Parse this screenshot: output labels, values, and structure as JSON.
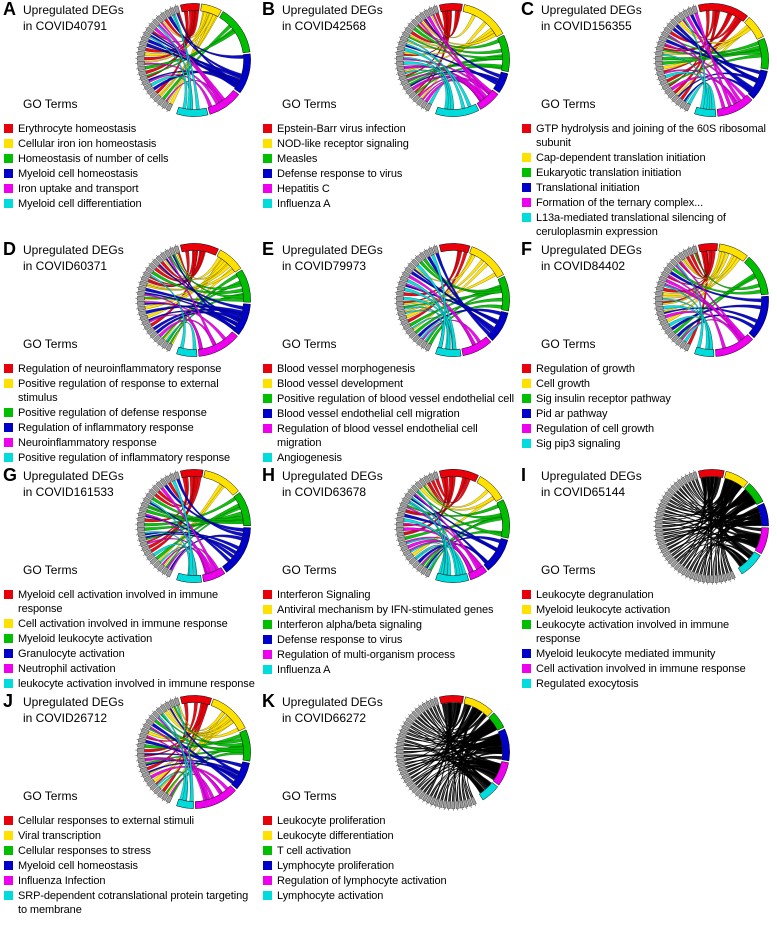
{
  "figure": {
    "background": "#ffffff",
    "palette": {
      "red": "#e8000b",
      "yellow": "#ffe100",
      "green": "#00bf00",
      "blue": "#0000c8",
      "magenta": "#ee00ee",
      "cyan": "#00dcdc"
    },
    "panels": [
      {
        "letter": "A",
        "title_top": "Upregulated DEGs",
        "title_bottom": "in COVID40791",
        "go_terms_label": "GO Terms",
        "chord_style": "colorful",
        "terms": [
          {
            "label": "Erythrocyte homeostasis",
            "color": "#e8000b"
          },
          {
            "label": "Cellular iron ion homeostasis",
            "color": "#ffe100"
          },
          {
            "label": "Homeostasis of number of cells",
            "color": "#00bf00"
          },
          {
            "label": "Myeloid cell homeostasis",
            "color": "#0000c8"
          },
          {
            "label": "Iron uptake and transport",
            "color": "#ee00ee"
          },
          {
            "label": "Myeloid cell differentiation",
            "color": "#00dcdc"
          }
        ]
      },
      {
        "letter": "B",
        "title_top": "Upregulated DEGs",
        "title_bottom": "in COVID42568",
        "go_terms_label": "GO Terms",
        "chord_style": "colorful",
        "terms": [
          {
            "label": "Epstein-Barr virus infection",
            "color": "#e8000b"
          },
          {
            "label": "NOD-like receptor signaling",
            "color": "#ffe100"
          },
          {
            "label": "Measles",
            "color": "#00bf00"
          },
          {
            "label": "Defense response to virus",
            "color": "#0000c8"
          },
          {
            "label": "Hepatitis C",
            "color": "#ee00ee"
          },
          {
            "label": "Influenza A",
            "color": "#00dcdc"
          }
        ]
      },
      {
        "letter": "C",
        "title_top": "Upregulated DEGs",
        "title_bottom": "in COVID156355",
        "go_terms_label": "GO Terms",
        "chord_style": "colorful",
        "terms": [
          {
            "label": "GTP hydrolysis and joining of the 60S ribosomal subunit",
            "color": "#e8000b"
          },
          {
            "label": "Cap-dependent translation initiation",
            "color": "#ffe100"
          },
          {
            "label": "Eukaryotic translation initiation",
            "color": "#00bf00"
          },
          {
            "label": "Translational initiation",
            "color": "#0000c8"
          },
          {
            "label": "Formation of the ternary complex...",
            "color": "#ee00ee"
          },
          {
            "label": "L13a-mediated translational silencing of ceruloplasmin expression",
            "color": "#00dcdc"
          }
        ]
      },
      {
        "letter": "D",
        "title_top": "Upregulated DEGs",
        "title_bottom": "in COVID60371",
        "go_terms_label": "GO Terms",
        "chord_style": "colorful",
        "terms": [
          {
            "label": "Regulation of neuroinflammatory response",
            "color": "#e8000b"
          },
          {
            "label": "Positive regulation of response to external stimulus",
            "color": "#ffe100"
          },
          {
            "label": "Positive regulation of defense response",
            "color": "#00bf00"
          },
          {
            "label": "Regulation of inflammatory response",
            "color": "#0000c8"
          },
          {
            "label": "Neuroinflammatory response",
            "color": "#ee00ee"
          },
          {
            "label": "Positive regulation of inflammatory response",
            "color": "#00dcdc"
          }
        ]
      },
      {
        "letter": "E",
        "title_top": "Upregulated DEGs",
        "title_bottom": "in COVID79973",
        "go_terms_label": "GO Terms",
        "chord_style": "colorful",
        "terms": [
          {
            "label": "Blood vessel morphogenesis",
            "color": "#e8000b"
          },
          {
            "label": "Blood vessel development",
            "color": "#ffe100"
          },
          {
            "label": "Positive regulation of blood vessel endothelial cell",
            "color": "#00bf00"
          },
          {
            "label": "Blood vessel endothelial cell migration",
            "color": "#0000c8"
          },
          {
            "label": "Regulation of blood vessel endothelial cell migration",
            "color": "#ee00ee"
          },
          {
            "label": "Angiogenesis",
            "color": "#00dcdc"
          }
        ]
      },
      {
        "letter": "F",
        "title_top": "Upregulated DEGs",
        "title_bottom": "in COVID84402",
        "go_terms_label": "GO Terms",
        "chord_style": "colorful",
        "terms": [
          {
            "label": "Regulation of growth",
            "color": "#e8000b"
          },
          {
            "label": "Cell growth",
            "color": "#ffe100"
          },
          {
            "label": "Sig insulin receptor pathway",
            "color": "#00bf00"
          },
          {
            "label": "Pid ar pathway",
            "color": "#0000c8"
          },
          {
            "label": "Regulation of cell growth",
            "color": "#ee00ee"
          },
          {
            "label": "Sig pip3 signaling",
            "color": "#00dcdc"
          }
        ]
      },
      {
        "letter": "G",
        "title_top": "Upregulated DEGs",
        "title_bottom": "in COVID161533",
        "go_terms_label": "GO Terms",
        "chord_style": "colorful",
        "terms": [
          {
            "label": "Myeloid cell activation involved in immune response",
            "color": "#e8000b"
          },
          {
            "label": "Cell activation involved in immune response",
            "color": "#ffe100"
          },
          {
            "label": "Myeloid leukocyte activation",
            "color": "#00bf00"
          },
          {
            "label": "Granulocyte activation",
            "color": "#0000c8"
          },
          {
            "label": "Neutrophil activation",
            "color": "#ee00ee"
          },
          {
            "label": "leukocyte activation involved in immune response",
            "color": "#00dcdc"
          }
        ]
      },
      {
        "letter": "H",
        "title_top": "Upregulated DEGs",
        "title_bottom": "in COVID63678",
        "go_terms_label": "GO Terms",
        "chord_style": "colorful",
        "terms": [
          {
            "label": "Interferon Signaling",
            "color": "#e8000b"
          },
          {
            "label": "Antiviral mechanism by IFN-stimulated genes",
            "color": "#ffe100"
          },
          {
            "label": "Interferon alpha/beta signaling",
            "color": "#00bf00"
          },
          {
            "label": "Defense response to virus",
            "color": "#0000c8"
          },
          {
            "label": "Regulation of multi-organism process",
            "color": "#ee00ee"
          },
          {
            "label": "Influenza A",
            "color": "#00dcdc"
          }
        ]
      },
      {
        "letter": "I",
        "title_top": "Upregulated DEGs",
        "title_bottom": "in COVID65144",
        "go_terms_label": "GO Terms",
        "chord_style": "dense",
        "terms": [
          {
            "label": "Leukocyte degranulation",
            "color": "#e8000b"
          },
          {
            "label": "Myeloid leukocyte activation",
            "color": "#ffe100"
          },
          {
            "label": "Leukocyte activation involved in immune response",
            "color": "#00bf00"
          },
          {
            "label": "Myeloid leukocyte mediated immunity",
            "color": "#0000c8"
          },
          {
            "label": "Cell activation involved in immune response",
            "color": "#ee00ee"
          },
          {
            "label": "Regulated exocytosis",
            "color": "#00dcdc"
          }
        ]
      },
      {
        "letter": "J",
        "title_top": "Upregulated DEGs",
        "title_bottom": "in COVID26712",
        "go_terms_label": "GO Terms",
        "chord_style": "colorful",
        "terms": [
          {
            "label": "Cellular responses to external stimuli",
            "color": "#e8000b"
          },
          {
            "label": "Viral transcription",
            "color": "#ffe100"
          },
          {
            "label": "Cellular responses to stress",
            "color": "#00bf00"
          },
          {
            "label": "Myeloid cell homeostasis",
            "color": "#0000c8"
          },
          {
            "label": "Influenza Infection",
            "color": "#ee00ee"
          },
          {
            "label": "SRP-dependent cotranslational protein targeting to membrane",
            "color": "#00dcdc"
          }
        ]
      },
      {
        "letter": "K",
        "title_top": "Upregulated DEGs",
        "title_bottom": "in COVID66272",
        "go_terms_label": "GO Terms",
        "chord_style": "dense",
        "terms": [
          {
            "label": "Leukocyte proliferation",
            "color": "#e8000b"
          },
          {
            "label": "Leukocyte differentiation",
            "color": "#ffe100"
          },
          {
            "label": "T cell activation",
            "color": "#00bf00"
          },
          {
            "label": "Lymphocyte proliferation",
            "color": "#0000c8"
          },
          {
            "label": "Regulation of lymphocyte activation",
            "color": "#ee00ee"
          },
          {
            "label": "Lymphocyte activation",
            "color": "#00dcdc"
          }
        ]
      }
    ]
  }
}
